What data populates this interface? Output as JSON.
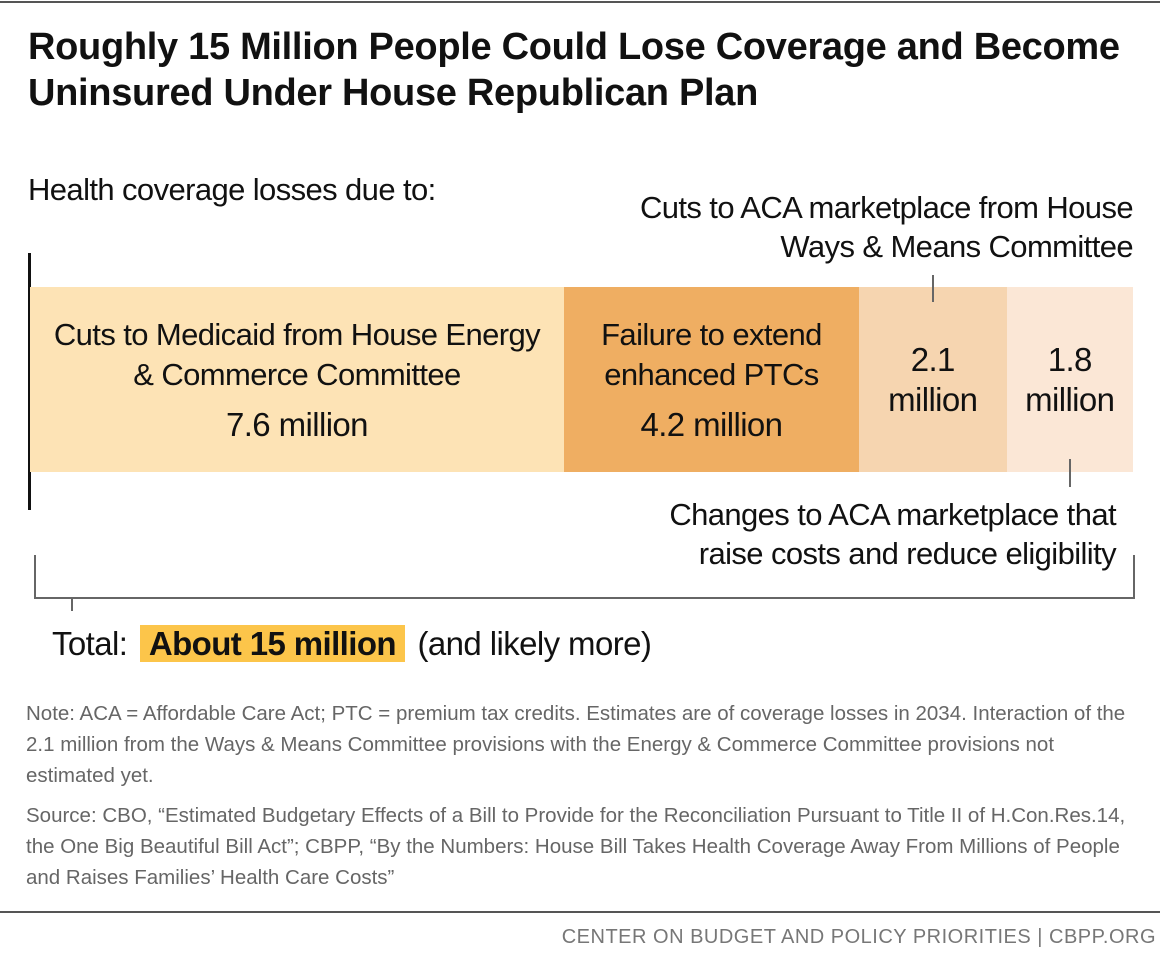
{
  "chart_data": {
    "type": "stacked-bar",
    "title": "Roughly 15 Million People Could Lose Coverage and Become Uninsured Under House Republican Plan",
    "subtitle": "Health coverage losses due to:",
    "series": [
      {
        "name": "Cuts to Medicaid from House Energy & Commerce Committee",
        "color": "#fde3b5",
        "values": [
          7.6
        ],
        "value_labels": [
          "7.6 million"
        ]
      },
      {
        "name": "Failure to extend enhanced PTCs",
        "color": "#efae62",
        "values": [
          4.2
        ],
        "value_labels": [
          "4.2 million"
        ]
      },
      {
        "name": "Cuts to ACA marketplace from House Ways & Means Committee",
        "color": "#f6d5b0",
        "values": [
          2.1
        ],
        "value_labels": [
          "2.1 million"
        ]
      },
      {
        "name": "Changes to ACA marketplace that raise costs and reduce eligibility",
        "color": "#fbe7d6",
        "values": [
          1.8
        ],
        "value_labels": [
          "1.8 million"
        ]
      }
    ],
    "total": {
      "label": "Total:",
      "highlight": "About 15 million",
      "suffix": "(and likely more)",
      "highlight_color": "#fcc54a"
    },
    "notes": [
      "Note: ACA = Affordable Care Act; PTC = premium tax credits. Estimates are of coverage losses in 2034. Interaction of the 2.1 million from the Ways & Means Committee provisions with the Energy & Commerce Committee provisions not estimated yet.",
      "Source: CBO, “Estimated Budgetary Effects of a Bill to Provide for the Reconciliation Pursuant to Title II of H.Con.Res.14, the One Big Beautiful Bill Act”; CBPP, “By the Numbers: House Bill Takes Health Coverage Away From Millions of People and Raises Families’ Health Care Costs”"
    ],
    "footer": "CENTER ON BUDGET AND POLICY PRIORITIES | CBPP.ORG"
  }
}
